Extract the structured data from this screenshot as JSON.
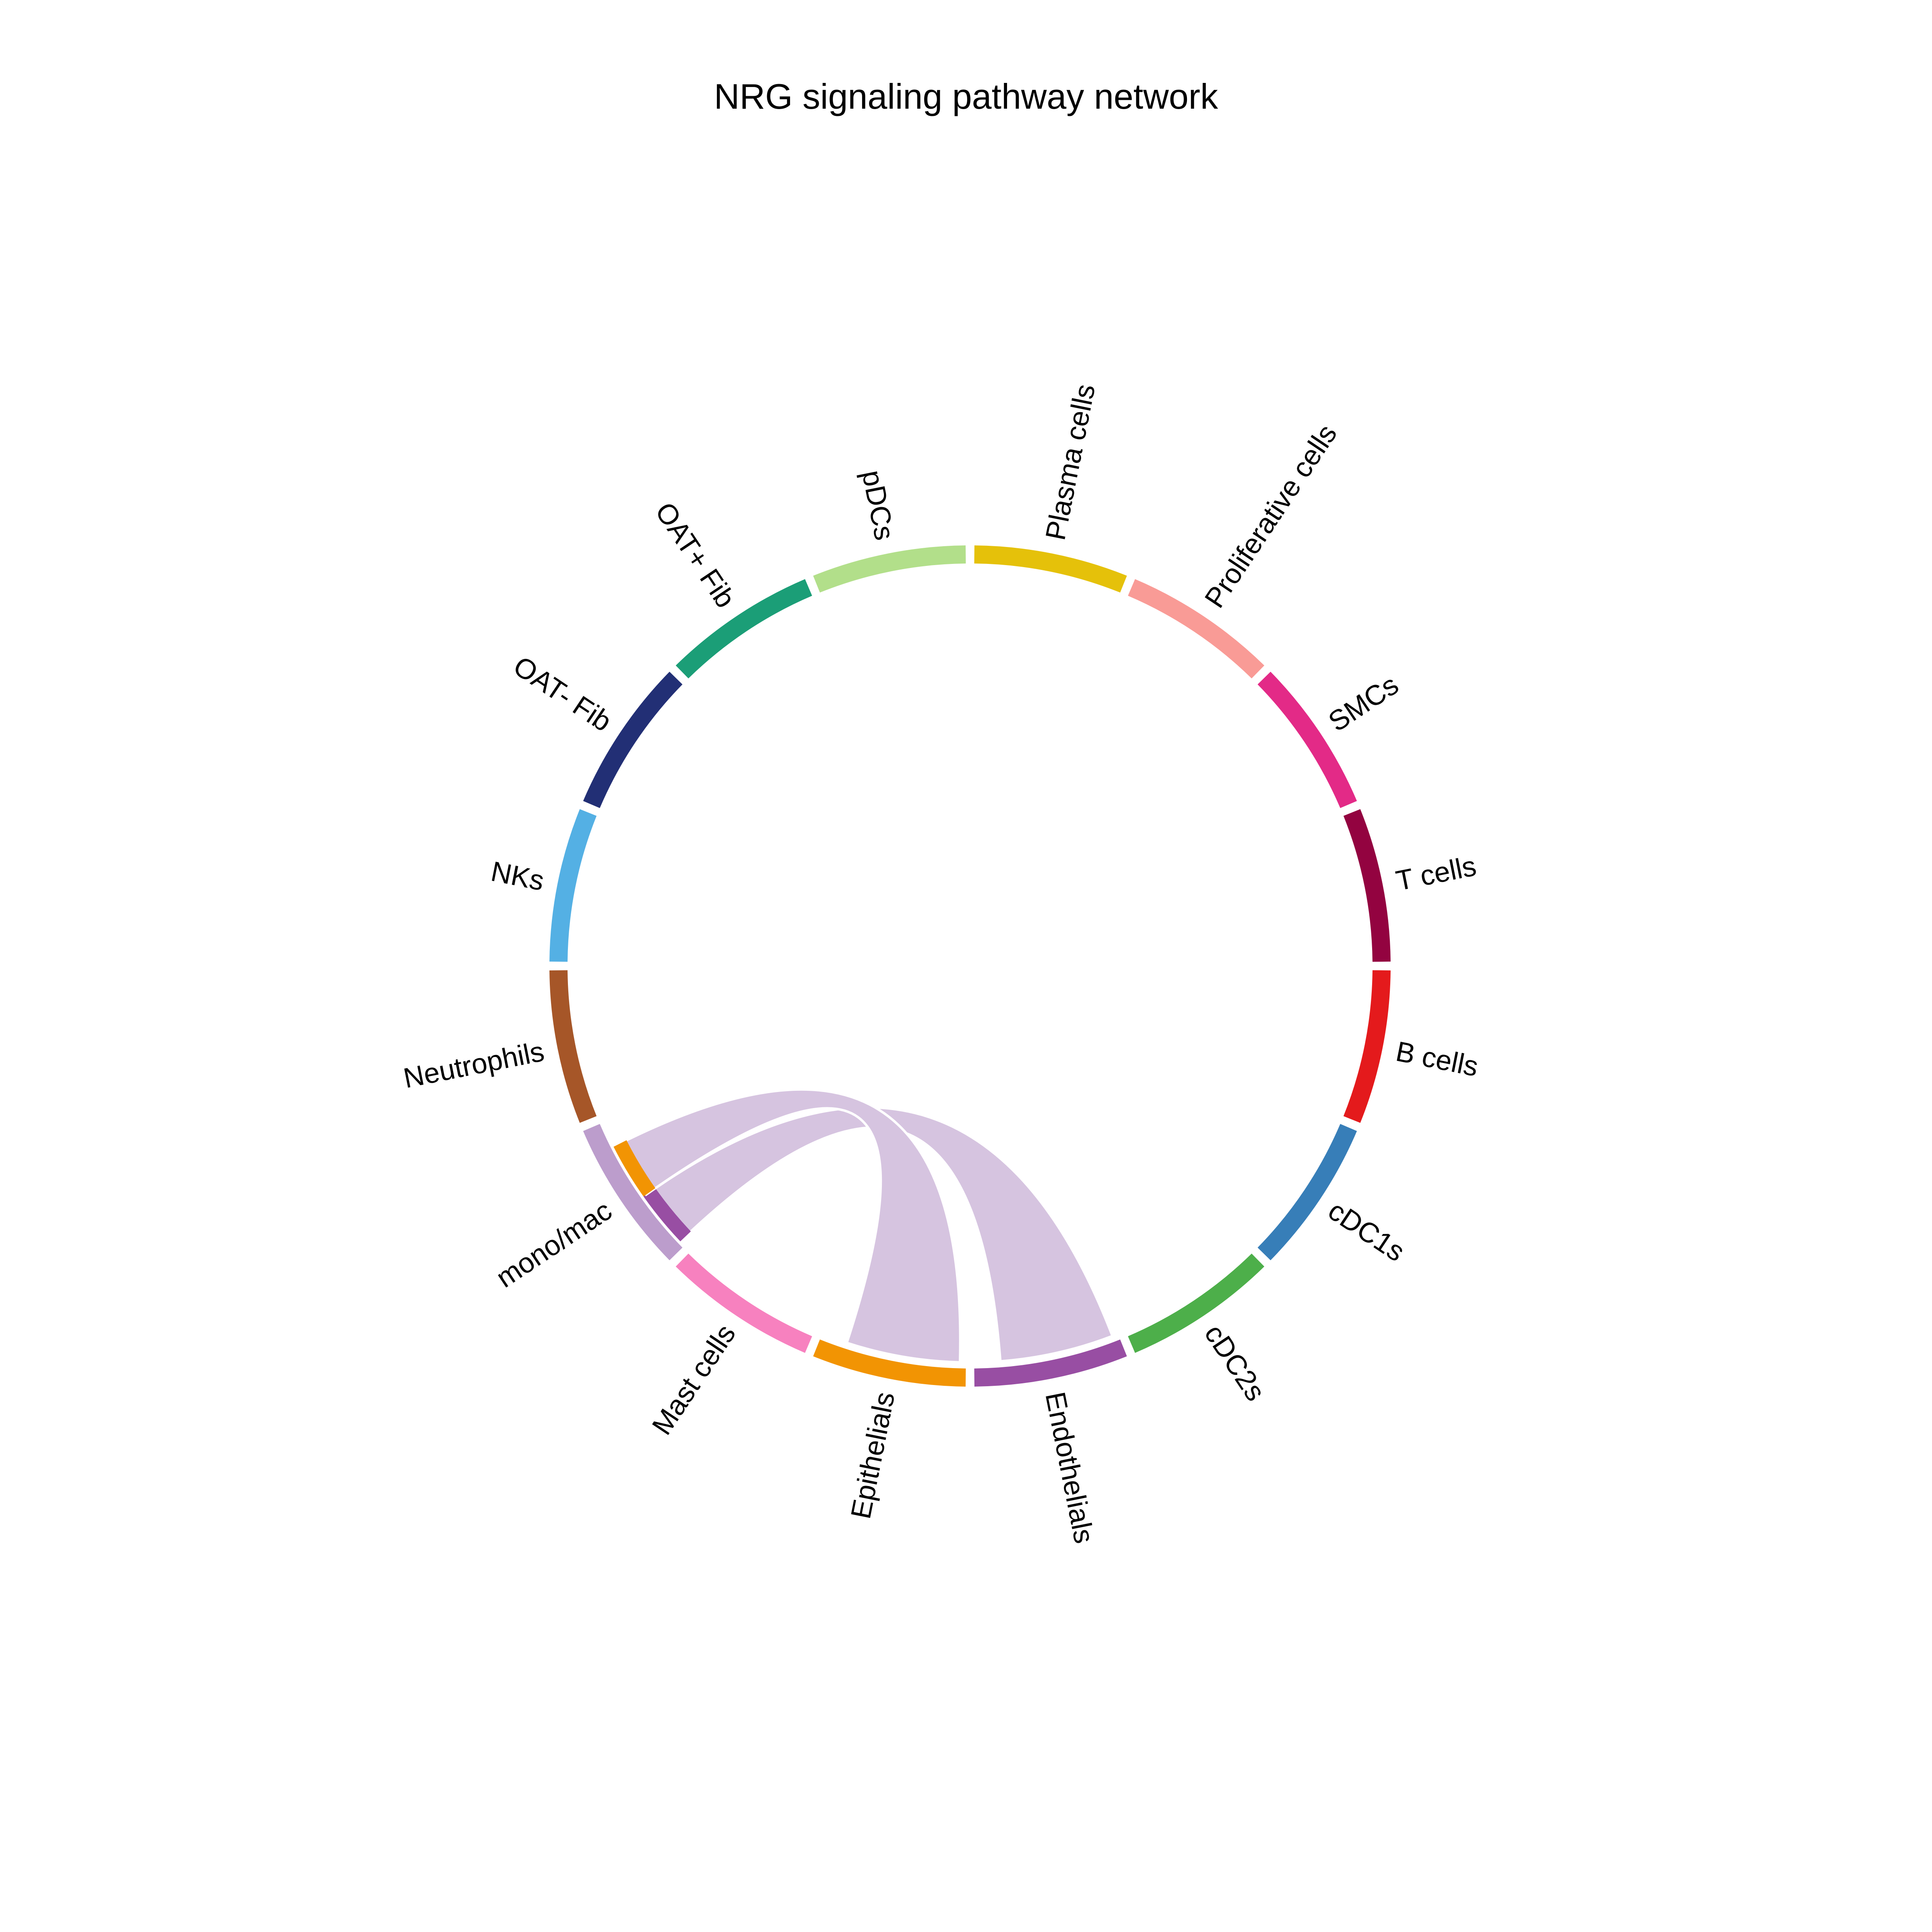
{
  "title": "NRG signaling pathway network",
  "chart_data": {
    "type": "chord",
    "title": "NRG signaling pathway network",
    "sectors": [
      {
        "name": "Plasma cells",
        "color": "#E5C10A"
      },
      {
        "name": "Proliferative cells",
        "color": "#F99B96"
      },
      {
        "name": "SMCs",
        "color": "#E32A87"
      },
      {
        "name": "T cells",
        "color": "#930340"
      },
      {
        "name": "B cells",
        "color": "#E41A1C"
      },
      {
        "name": "cDC1s",
        "color": "#377EB8"
      },
      {
        "name": "cDC2s",
        "color": "#4DAF4A"
      },
      {
        "name": "Endothelials",
        "color": "#984EA3"
      },
      {
        "name": "Epithelials",
        "color": "#F29403"
      },
      {
        "name": "Mast cells",
        "color": "#F781BF"
      },
      {
        "name": "mono/mac",
        "color": "#BC9DCC"
      },
      {
        "name": "Neutrophils",
        "color": "#A65628"
      },
      {
        "name": "NKs",
        "color": "#54B0E4"
      },
      {
        "name": "OAT- Fib",
        "color": "#222F75"
      },
      {
        "name": "OAT+ Fib",
        "color": "#1B9E77"
      },
      {
        "name": "pDCs",
        "color": "#B2DF8A"
      }
    ],
    "links": [
      {
        "source": "mono/mac",
        "target": "Endothelials"
      },
      {
        "source": "mono/mac",
        "target": "Epithelials"
      }
    ],
    "link_color": "#D6C4E0"
  }
}
